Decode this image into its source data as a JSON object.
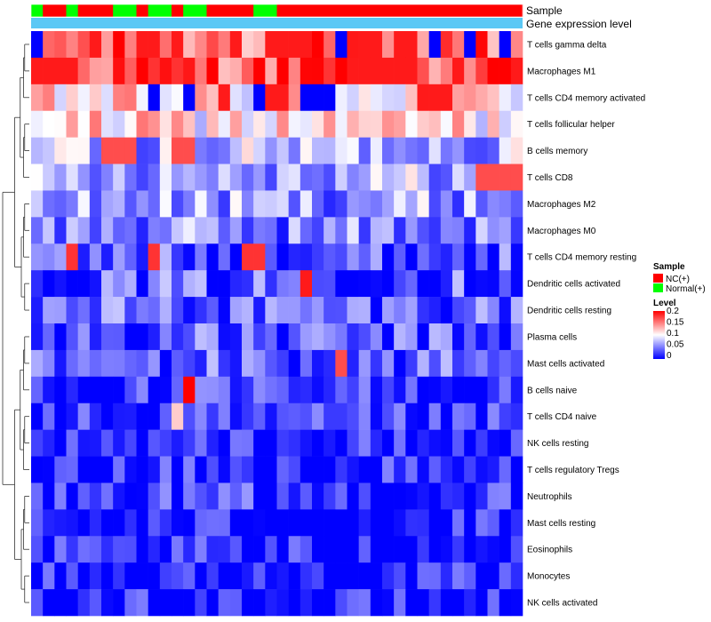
{
  "chart_data": {
    "type": "heatmap",
    "annotations": {
      "sample_title": "Sample",
      "gene_title": "Gene expression level",
      "sample_groups": [
        "Normal(+)",
        "NC(+)",
        "Normal(+)",
        "NC(+)",
        "Normal(+)",
        "NC(+)",
        "Normal(+)",
        "NC(+)",
        "Normal(+)",
        "NC(+)",
        "Normal(+)",
        "NC(+)"
      ],
      "sample_group_counts": [
        1,
        2,
        1,
        3,
        2,
        1,
        2,
        1,
        2,
        4,
        2,
        21
      ]
    },
    "rows": [
      "T cells gamma delta",
      "Macrophages M1",
      "T cells CD4 memory activated",
      "T cells follicular helper",
      "B cells memory",
      "T cells CD8",
      "Macrophages M2",
      "Macrophages M0",
      "T cells CD4 memory resting",
      "Dendritic cells activated",
      "Dendritic cells resting",
      "Plasma cells",
      "Mast cells activated",
      "B cells naive",
      "T cells CD4 naive",
      "NK cells resting",
      "T cells regulatory  Tregs",
      "Neutrophils",
      "Mast cells resting",
      "Eosinophils",
      "Monocytes",
      "NK cells activated"
    ],
    "columns": 42,
    "row_base_levels": [
      0.16,
      0.17,
      0.11,
      0.11,
      0.07,
      0.07,
      0.06,
      0.05,
      0.03,
      0.035,
      0.04,
      0.03,
      0.035,
      0.015,
      0.01,
      0.008,
      0.008,
      0.015,
      0.005,
      0.005,
      0.004,
      0.004
    ],
    "highlights": [
      {
        "row": "T cells gamma delta",
        "cols": [
          5,
          9,
          10,
          12,
          17,
          20,
          21,
          22,
          23,
          28,
          29,
          31
        ],
        "value": 0.19
      },
      {
        "row": "T cells gamma delta",
        "cols": [
          0,
          26,
          34,
          37,
          40
        ],
        "value": 0.0
      },
      {
        "row": "Macrophages M1",
        "cols": [
          0,
          1,
          2,
          3,
          27,
          28,
          29,
          30,
          31,
          32,
          41
        ],
        "value": 0.19
      },
      {
        "row": "T cells CD4 memory activated",
        "cols": [
          16,
          20,
          21,
          33,
          34,
          35
        ],
        "value": 0.19
      },
      {
        "row": "T cells CD4 memory activated",
        "cols": [
          10,
          13,
          19,
          23,
          24,
          25
        ],
        "value": 0.0
      },
      {
        "row": "B cells memory",
        "cols": [
          6,
          7,
          8,
          12,
          13
        ],
        "value": 0.17
      },
      {
        "row": "T cells CD8",
        "cols": [
          38,
          39,
          40,
          41
        ],
        "value": 0.17
      },
      {
        "row": "T cells CD4 memory resting",
        "cols": [
          3,
          10,
          18,
          19
        ],
        "value": 0.18
      },
      {
        "row": "Dendritic cells activated",
        "cols": [
          23
        ],
        "value": 0.19
      },
      {
        "row": "Mast cells activated",
        "cols": [
          26
        ],
        "value": 0.17
      },
      {
        "row": "B cells naive",
        "cols": [
          13
        ],
        "value": 0.2
      },
      {
        "row": "T cells CD4 naive",
        "cols": [
          12
        ],
        "value": 0.12
      }
    ],
    "legend": {
      "sample_title": "Sample",
      "sample_entries": [
        {
          "label": "NC(+)",
          "color": "#FF0000"
        },
        {
          "label": "Normal(+)",
          "color": "#00FF00"
        }
      ],
      "level_title": "Level",
      "level_ticks": [
        "0.2",
        "0.15",
        "0.1",
        "0.05",
        "0"
      ],
      "level_range": [
        0,
        0.2
      ]
    },
    "colors": {
      "low": "#0000FF",
      "mid": "#FFFFFF",
      "high": "#FF0000",
      "gene_bar": "#5BC8F5"
    }
  }
}
